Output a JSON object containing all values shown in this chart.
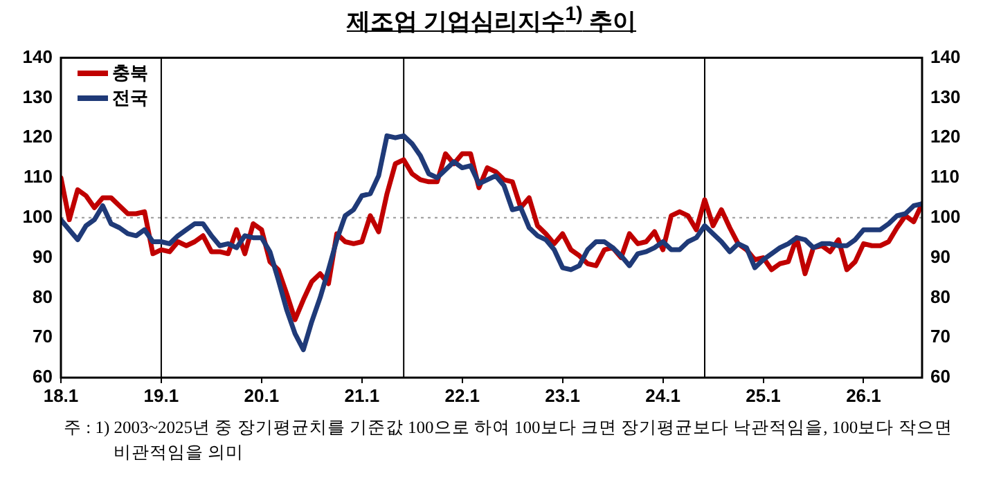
{
  "chart_data": {
    "type": "line",
    "title": "제조업 기업심리지수$^{1)}$ 추이",
    "x": [
      "2018-01",
      "2018-02",
      "2018-03",
      "2018-04",
      "2018-05",
      "2018-06",
      "2018-07",
      "2018-08",
      "2018-09",
      "2018-10",
      "2018-11",
      "2018-12",
      "2019-01",
      "2019-02",
      "2019-03",
      "2019-04",
      "2019-05",
      "2019-06",
      "2019-07",
      "2019-08",
      "2019-09",
      "2019-10",
      "2019-11",
      "2019-12",
      "2020-01",
      "2020-02",
      "2020-03",
      "2020-04",
      "2020-05",
      "2020-06",
      "2020-07",
      "2020-08",
      "2020-09",
      "2020-10",
      "2020-11",
      "2020-12",
      "2021-01",
      "2021-02",
      "2021-03",
      "2021-04",
      "2021-05",
      "2021-06",
      "2021-07",
      "2021-08",
      "2021-09",
      "2021-10",
      "2021-11",
      "2021-12",
      "2022-01",
      "2022-02",
      "2022-03",
      "2022-04",
      "2022-05",
      "2022-06",
      "2022-07",
      "2022-08",
      "2022-09",
      "2022-10",
      "2022-11",
      "2022-12",
      "2023-01",
      "2023-02",
      "2023-03",
      "2023-04",
      "2023-05",
      "2023-06",
      "2023-07",
      "2023-08",
      "2023-09",
      "2023-10",
      "2023-11",
      "2023-12",
      "2024-01",
      "2024-02",
      "2024-03",
      "2024-04",
      "2024-05",
      "2024-06",
      "2024-07",
      "2024-08",
      "2024-09",
      "2024-10",
      "2024-11",
      "2024-12",
      "2025-01",
      "2025-02",
      "2025-03",
      "2025-04",
      "2025-05",
      "2025-06",
      "2025-07",
      "2025-08",
      "2025-09",
      "2025-10",
      "2025-11",
      "2025-12",
      "2026-01",
      "2026-02",
      "2026-03",
      "2026-04",
      "2026-05",
      "2026-06",
      "2026-07",
      "2026-08"
    ],
    "series": [
      {
        "name": "충북",
        "color": "#c00000",
        "values": [
          110,
          99.5,
          107,
          105.5,
          102.5,
          105,
          105,
          103,
          101,
          101,
          101.5,
          91,
          92,
          91.5,
          94,
          93,
          94,
          95.5,
          91.5,
          91.5,
          91,
          97,
          91,
          98.5,
          97,
          89,
          87,
          81,
          74.5,
          79.5,
          84,
          86,
          83.5,
          96,
          94,
          93.5,
          94,
          100.5,
          96.5,
          106,
          113.5,
          114.5,
          111,
          109.5,
          109,
          109,
          116,
          113.5,
          116,
          116,
          107.5,
          112.5,
          111.5,
          109.5,
          109,
          102.5,
          105,
          98,
          96,
          93.5,
          96,
          92,
          90.5,
          88.5,
          88,
          92,
          92.5,
          90,
          96,
          93.5,
          94,
          96.5,
          92,
          100.5,
          101.5,
          100.5,
          97,
          104.5,
          98,
          102,
          97.5,
          93.5,
          92,
          89.5,
          90,
          87,
          88.5,
          89,
          95,
          86,
          92.5,
          93,
          91.5,
          94.5,
          87,
          89,
          93.5,
          93,
          93,
          94,
          97.5,
          100.5,
          99,
          103.5
        ]
      },
      {
        "name": "전국",
        "color": "#1f3a78",
        "values": [
          99.5,
          97,
          94.5,
          98,
          99.5,
          103,
          98.5,
          97.5,
          96,
          95.5,
          97,
          94,
          94,
          93.5,
          95.5,
          97,
          98.5,
          98.5,
          95.5,
          93,
          93.5,
          92.5,
          95.5,
          95,
          95,
          91.5,
          84.5,
          77,
          71,
          67,
          74,
          80,
          87,
          94.5,
          100.5,
          102,
          105.5,
          106,
          110.5,
          120.5,
          120,
          120.5,
          118.5,
          115.5,
          111,
          110,
          112,
          114,
          112.5,
          113,
          108.5,
          109.5,
          110.5,
          108,
          102,
          102.5,
          97.5,
          95.5,
          94.5,
          92,
          87.5,
          87,
          88,
          92,
          94,
          94,
          92.5,
          90.5,
          88,
          91,
          91.5,
          92.5,
          94,
          92,
          92,
          94,
          95,
          98,
          96,
          94,
          91.5,
          93.5,
          92.5,
          87.5,
          89.5,
          91,
          92.5,
          93.5,
          95,
          94.5,
          92.5,
          93.5,
          93.5,
          93,
          93,
          94.5,
          97,
          97,
          97,
          98.5,
          100.5,
          101,
          103,
          103.5
        ]
      }
    ],
    "xlim": [
      "2018-01",
      "2026-08"
    ],
    "xticks": [
      {
        "value": "2018-01",
        "label": "18.1"
      },
      {
        "value": "2019-01",
        "label": "19.1"
      },
      {
        "value": "2020-01",
        "label": "20.1"
      },
      {
        "value": "2021-01",
        "label": "21.1"
      },
      {
        "value": "2022-01",
        "label": "22.1"
      },
      {
        "value": "2023-01",
        "label": "23.1"
      },
      {
        "value": "2024-01",
        "label": "24.1"
      },
      {
        "value": "2025-01",
        "label": "25.1"
      },
      {
        "value": "2026-01",
        "label": "26.1"
      }
    ],
    "ylim": [
      60,
      140
    ],
    "yticks": [
      60,
      70,
      80,
      90,
      100,
      110,
      120,
      130,
      140
    ],
    "y2lim": [
      60,
      140
    ],
    "y2ticks": [
      60,
      70,
      80,
      90,
      100,
      110,
      120,
      130,
      140
    ],
    "ref_lines": [
      {
        "axis": "y",
        "value": 100,
        "color": "#999999",
        "line_style": "dotted"
      },
      {
        "axis": "x",
        "value": "2019-01",
        "color": "#000000",
        "line_style": "solid"
      },
      {
        "axis": "x",
        "value": "2021-06",
        "color": "#000000",
        "line_style": "solid"
      },
      {
        "axis": "x",
        "value": "2024-06",
        "color": "#000000",
        "line_style": "solid"
      }
    ],
    "legend": "top left",
    "grid": false,
    "marker": "none",
    "line_style": "solid",
    "annotations": [
      "주 : 1) 2003~2025년 중 장기평균치를 기준값 100으로 하여 100보다 크면 장기평균보다 낙관적임을, 100보다 작으면 비관적임을 의미"
    ]
  }
}
